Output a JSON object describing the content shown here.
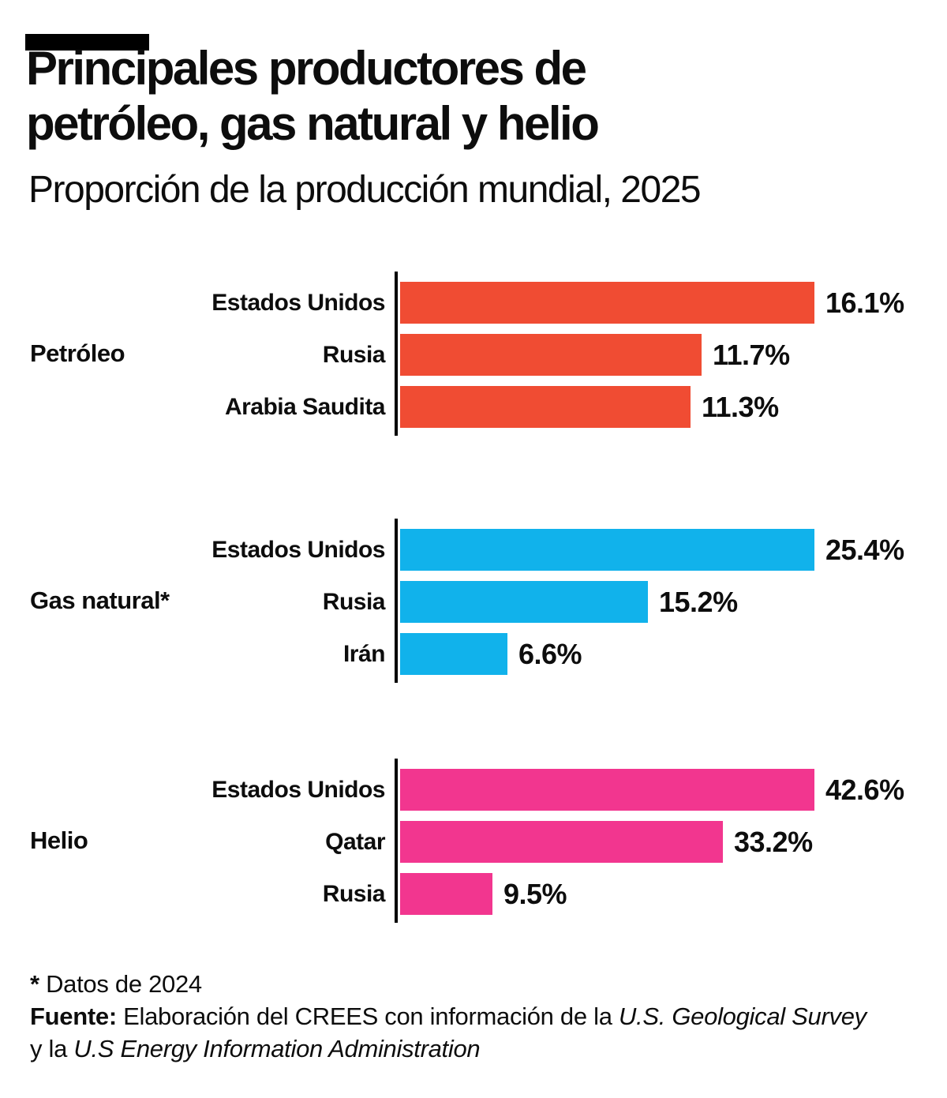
{
  "colors": {
    "background": "#FFFFFF",
    "text": "#0D0D0D",
    "axis": "#000000",
    "petroleo": "#F04C33",
    "gas_natural": "#11B2EB",
    "helio": "#F2368F"
  },
  "header": {
    "title_line1": "Principales productores de",
    "title_line2": "petróleo, gas natural y helio",
    "subtitle": "Proporción de la producción mundial, 2025"
  },
  "chart_data": {
    "type": "bar",
    "orientation": "horizontal",
    "title": "Principales productores de petróleo, gas natural y helio",
    "subtitle": "Proporción de la producción mundial, 2025",
    "unit": "%",
    "value_labels_shown": true,
    "grid": "off",
    "legend": "none",
    "axis_style": "black baseline per group, no ticks",
    "group_scaling": "bars in each group scaled relative to that group's maximum value",
    "series": [
      {
        "name": "Petróleo",
        "color": "#F04C33",
        "categories": [
          "Estados Unidos",
          "Rusia",
          "Arabia Saudita"
        ],
        "values": [
          16.1,
          11.7,
          11.3
        ],
        "value_labels": [
          "16.1%",
          "11.7%",
          "11.3%"
        ]
      },
      {
        "name": "Gas natural*",
        "color": "#11B2EB",
        "categories": [
          "Estados Unidos",
          "Rusia",
          "Irán"
        ],
        "values": [
          25.4,
          15.2,
          6.6
        ],
        "value_labels": [
          "25.4%",
          "15.2%",
          "6.6%"
        ]
      },
      {
        "name": "Helio",
        "color": "#F2368F",
        "categories": [
          "Estados Unidos",
          "Qatar",
          "Rusia"
        ],
        "values": [
          42.6,
          33.2,
          9.5
        ],
        "value_labels": [
          "42.6%",
          "33.2%",
          "9.5%"
        ]
      }
    ]
  },
  "footer": {
    "note_star": "*",
    "note_text": " Datos de 2024",
    "source_label": "Fuente:",
    "source_text": " Elaboración del CREES con información de la ",
    "source_italic": "U.S. Geological Survey",
    "line2_prefix": "y la ",
    "line2_italic": "U.S Energy Information Administration"
  }
}
